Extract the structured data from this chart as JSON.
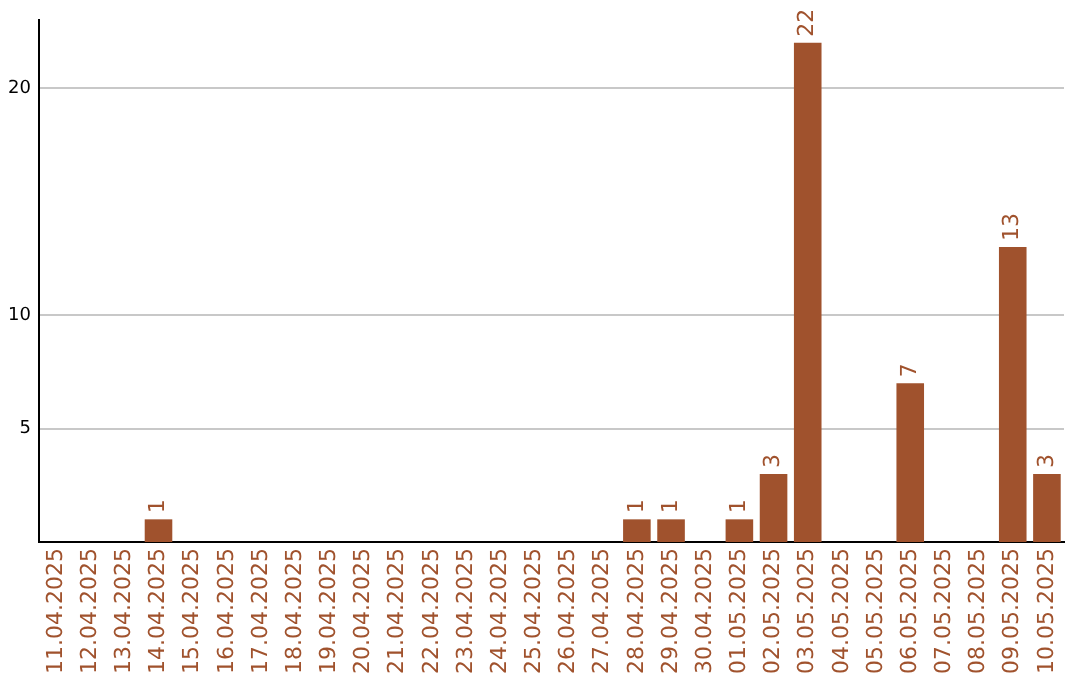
{
  "chart_data": {
    "type": "bar",
    "categories": [
      "11.04.2025",
      "12.04.2025",
      "13.04.2025",
      "14.04.2025",
      "15.04.2025",
      "16.04.2025",
      "17.04.2025",
      "18.04.2025",
      "19.04.2025",
      "20.04.2025",
      "21.04.2025",
      "22.04.2025",
      "23.04.2025",
      "24.04.2025",
      "25.04.2025",
      "26.04.2025",
      "27.04.2025",
      "28.04.2025",
      "29.04.2025",
      "30.04.2025",
      "01.05.2025",
      "02.05.2025",
      "03.05.2025",
      "04.05.2025",
      "05.05.2025",
      "06.05.2025",
      "07.05.2025",
      "08.05.2025",
      "09.05.2025",
      "10.05.2025"
    ],
    "values": [
      0,
      0,
      0,
      1,
      0,
      0,
      0,
      0,
      0,
      0,
      0,
      0,
      0,
      0,
      0,
      0,
      0,
      1,
      1,
      0,
      1,
      3,
      22,
      0,
      0,
      7,
      0,
      0,
      13,
      3
    ],
    "value_labels": [
      null,
      null,
      null,
      "1",
      null,
      null,
      null,
      null,
      null,
      null,
      null,
      null,
      null,
      null,
      null,
      null,
      null,
      "1",
      "1",
      null,
      "1",
      "3",
      "22",
      null,
      null,
      "7",
      null,
      null,
      "13",
      "3"
    ],
    "color": "#a0522d",
    "ylim": [
      0,
      23
    ],
    "yticks": [
      5,
      10,
      20
    ],
    "grid": "y",
    "legend": false
  }
}
